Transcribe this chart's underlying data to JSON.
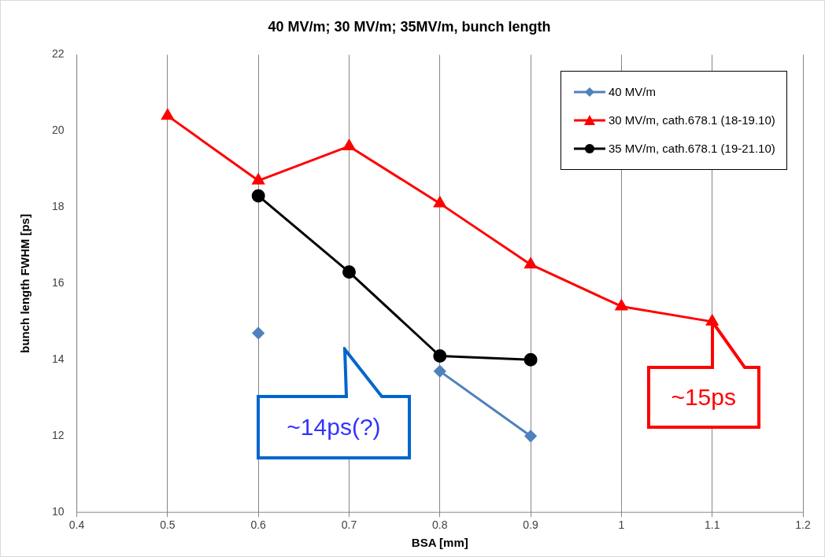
{
  "chart_data": {
    "type": "line",
    "title": "40 MV/m; 30 MV/m; 35MV/m, bunch length",
    "xlabel": "BSA [mm]",
    "ylabel": "bunch length FWHM [ps]",
    "x": [
      0.5,
      0.6,
      0.7,
      0.8,
      0.9,
      1.0,
      1.1
    ],
    "series": [
      {
        "name": "40 MV/m",
        "color": "#4f81bd",
        "marker": "diamond",
        "values": [
          null,
          14.7,
          null,
          13.7,
          12.0,
          null,
          null
        ]
      },
      {
        "name": "30 MV/m, cath.678.1 (18-19.10)",
        "color": "#ff0000",
        "marker": "triangle",
        "values": [
          20.4,
          18.7,
          19.6,
          18.1,
          16.5,
          15.4,
          15.0
        ]
      },
      {
        "name": "35 MV/m, cath.678.1 (19-21.10)",
        "color": "#000000",
        "marker": "circle",
        "values": [
          null,
          18.3,
          16.3,
          14.1,
          14.0,
          null,
          null
        ]
      }
    ],
    "xlim": [
      0.4,
      1.2
    ],
    "xticks": [
      0.4,
      0.5,
      0.6,
      0.7,
      0.8,
      0.9,
      1,
      1.1,
      1.2
    ],
    "ylim": [
      10,
      22
    ],
    "yticks": [
      10,
      12,
      14,
      16,
      18,
      20,
      22
    ],
    "grid": "x",
    "legend": "top right",
    "annotations": [
      "~14ps(?)",
      {
        "text": "~15ps",
        "x": 1.1,
        "y": 15.0
      }
    ]
  }
}
